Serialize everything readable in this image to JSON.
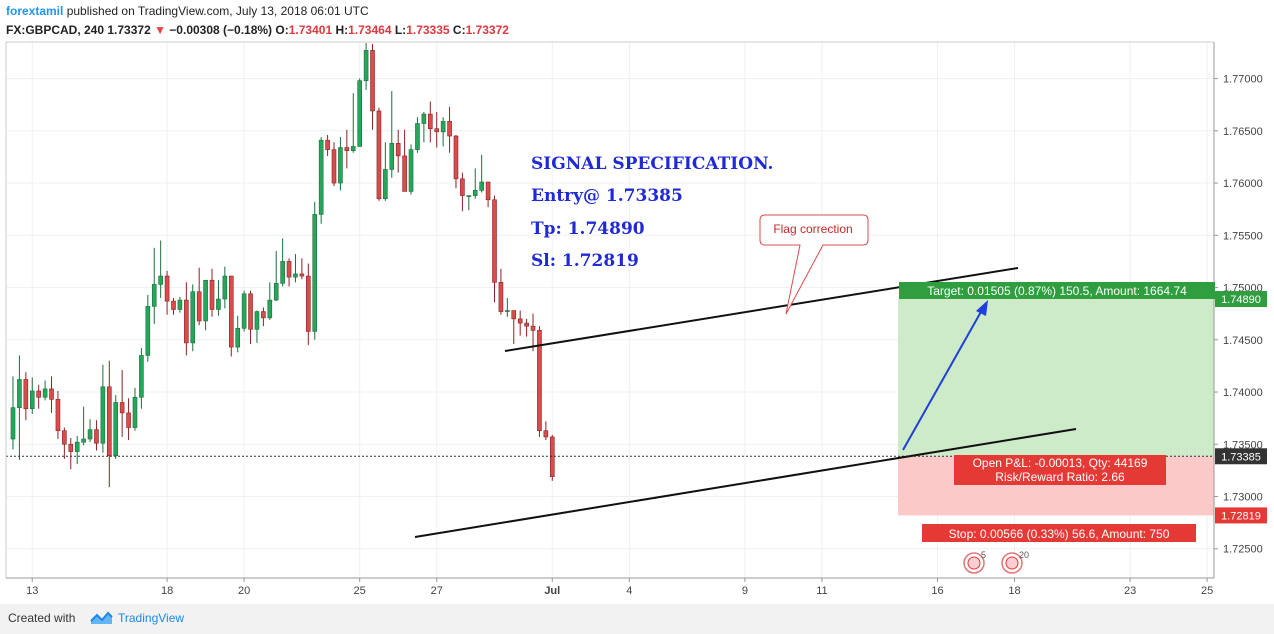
{
  "header": {
    "author": "forextamil",
    "published": " published on TradingView.com, July 13, 2018 06:01 UTC",
    "symbol": "FX:GBPCAD, 240",
    "last": " 1.73372 ",
    "change_arrow": "▼",
    "change": " −0.00308 (−0.18%) ",
    "o_label": "O:",
    "o_value": "1.73401",
    "h_label": " H:",
    "h_value": "1.73464",
    "l_label": " L:",
    "l_value": "1.73335",
    "c_label": " C:",
    "c_value": "1.73372"
  },
  "footer": {
    "created_with": "Created with",
    "brand": "TradingView"
  },
  "colors": {
    "up": "#26a65b",
    "down": "#d94c4c",
    "target_zone": "#cdebc9",
    "stop_zone": "#fcc9c9",
    "target_label": "#2e9e3e",
    "stop_label": "#e53935",
    "signal_text": "#1f2ad6",
    "arrow": "#1f3fd6"
  },
  "chart_data": {
    "type": "candlestick",
    "symbol": "FX:GBPCAD",
    "timeframe": "240",
    "ylim": [
      1.7222,
      1.7735
    ],
    "y_ticks": [
      "1.77000",
      "1.76500",
      "1.76000",
      "1.75500",
      "1.75000",
      "1.74500",
      "1.74000",
      "1.73500",
      "1.73000",
      "1.72500"
    ],
    "y_tick_values": [
      1.77,
      1.765,
      1.76,
      1.755,
      1.75,
      1.745,
      1.74,
      1.735,
      1.73,
      1.725
    ],
    "x_ticks": [
      {
        "label": "13",
        "bar": 3
      },
      {
        "label": "18",
        "bar": 24
      },
      {
        "label": "20",
        "bar": 36
      },
      {
        "label": "25",
        "bar": 54
      },
      {
        "label": "27",
        "bar": 66
      },
      {
        "label": "Jul",
        "bar": 84
      },
      {
        "label": "4",
        "bar": 96
      },
      {
        "label": "9",
        "bar": 114
      },
      {
        "label": "11",
        "bar": 126
      },
      {
        "label": "16",
        "bar": 144
      },
      {
        "label": "18",
        "bar": 156
      },
      {
        "label": "23",
        "bar": 174
      },
      {
        "label": "25",
        "bar": 186
      }
    ],
    "candles": [
      [
        1.7355,
        1.7385,
        1.7345,
        1.7415
      ],
      [
        1.7385,
        1.7412,
        1.7335,
        1.7435
      ],
      [
        1.7412,
        1.7384,
        1.7373,
        1.7419
      ],
      [
        1.7384,
        1.7401,
        1.7379,
        1.7414
      ],
      [
        1.7401,
        1.7395,
        1.7384,
        1.7407
      ],
      [
        1.7395,
        1.7403,
        1.7392,
        1.7411
      ],
      [
        1.7403,
        1.7393,
        1.738,
        1.7415
      ],
      [
        1.7393,
        1.7363,
        1.7355,
        1.7401
      ],
      [
        1.7363,
        1.735,
        1.7336,
        1.7366
      ],
      [
        1.735,
        1.7343,
        1.7326,
        1.7356
      ],
      [
        1.7343,
        1.7352,
        1.7331,
        1.7358
      ],
      [
        1.7352,
        1.7355,
        1.7349,
        1.7386
      ],
      [
        1.7355,
        1.7364,
        1.7352,
        1.7374
      ],
      [
        1.7364,
        1.7351,
        1.7344,
        1.7373
      ],
      [
        1.7351,
        1.7405,
        1.7342,
        1.7426
      ],
      [
        1.7405,
        1.7339,
        1.7309,
        1.743
      ],
      [
        1.7339,
        1.739,
        1.7336,
        1.7397
      ],
      [
        1.739,
        1.738,
        1.7357,
        1.7421
      ],
      [
        1.738,
        1.7366,
        1.7354,
        1.7394
      ],
      [
        1.7366,
        1.7395,
        1.7363,
        1.7404
      ],
      [
        1.7395,
        1.7435,
        1.7384,
        1.7442
      ],
      [
        1.7435,
        1.7482,
        1.7429,
        1.7493
      ],
      [
        1.7482,
        1.7503,
        1.7465,
        1.7538
      ],
      [
        1.7503,
        1.7511,
        1.749,
        1.7545
      ],
      [
        1.7511,
        1.7487,
        1.7474,
        1.7516
      ],
      [
        1.7487,
        1.7479,
        1.7474,
        1.749
      ],
      [
        1.7479,
        1.7488,
        1.7476,
        1.7491
      ],
      [
        1.7488,
        1.7447,
        1.7435,
        1.7505
      ],
      [
        1.7447,
        1.7496,
        1.7439,
        1.7503
      ],
      [
        1.7496,
        1.7468,
        1.7464,
        1.7519
      ],
      [
        1.7468,
        1.7507,
        1.7459,
        1.7507
      ],
      [
        1.7507,
        1.7479,
        1.7472,
        1.7518
      ],
      [
        1.7479,
        1.7489,
        1.7473,
        1.7507
      ],
      [
        1.7489,
        1.7511,
        1.748,
        1.752
      ],
      [
        1.7511,
        1.7443,
        1.7434,
        1.7511
      ],
      [
        1.7443,
        1.7461,
        1.7438,
        1.7473
      ],
      [
        1.7461,
        1.7494,
        1.7458,
        1.7497
      ],
      [
        1.7494,
        1.746,
        1.7446,
        1.7497
      ],
      [
        1.746,
        1.7477,
        1.7447,
        1.7478
      ],
      [
        1.7477,
        1.7471,
        1.7463,
        1.7481
      ],
      [
        1.7471,
        1.7488,
        1.7469,
        1.7505
      ],
      [
        1.7488,
        1.7504,
        1.7487,
        1.7535
      ],
      [
        1.7504,
        1.7525,
        1.7501,
        1.7547
      ],
      [
        1.7525,
        1.751,
        1.7501,
        1.7528
      ],
      [
        1.751,
        1.7513,
        1.7505,
        1.7532
      ],
      [
        1.7513,
        1.7511,
        1.7508,
        1.7528
      ],
      [
        1.7511,
        1.7458,
        1.7445,
        1.7523
      ],
      [
        1.7458,
        1.757,
        1.745,
        1.7582
      ],
      [
        1.757,
        1.7641,
        1.7561,
        1.7644
      ],
      [
        1.7641,
        1.7632,
        1.7626,
        1.7646
      ],
      [
        1.7632,
        1.76,
        1.7597,
        1.7639
      ],
      [
        1.76,
        1.7634,
        1.7593,
        1.7644
      ],
      [
        1.7634,
        1.7631,
        1.7614,
        1.7651
      ],
      [
        1.7631,
        1.7635,
        1.7629,
        1.7686
      ],
      [
        1.7635,
        1.7698,
        1.7635,
        1.77
      ],
      [
        1.7698,
        1.7727,
        1.7689,
        1.7734
      ],
      [
        1.7727,
        1.7669,
        1.7651,
        1.7733
      ],
      [
        1.7669,
        1.7585,
        1.7583,
        1.7672
      ],
      [
        1.7585,
        1.7613,
        1.7583,
        1.7639
      ],
      [
        1.7613,
        1.7638,
        1.7605,
        1.7688
      ],
      [
        1.7638,
        1.7626,
        1.761,
        1.7651
      ],
      [
        1.7626,
        1.7592,
        1.7592,
        1.7651
      ],
      [
        1.7592,
        1.7632,
        1.7589,
        1.7637
      ],
      [
        1.7632,
        1.7657,
        1.7629,
        1.7663
      ],
      [
        1.7657,
        1.7666,
        1.7639,
        1.7668
      ],
      [
        1.7666,
        1.7652,
        1.7639,
        1.7678
      ],
      [
        1.7652,
        1.7649,
        1.7634,
        1.7668
      ],
      [
        1.7649,
        1.7659,
        1.7635,
        1.7663
      ],
      [
        1.7659,
        1.7645,
        1.7629,
        1.7673
      ],
      [
        1.7645,
        1.7604,
        1.7595,
        1.7646
      ],
      [
        1.7604,
        1.7588,
        1.7573,
        1.761
      ],
      [
        1.7588,
        1.7588,
        1.7574,
        1.7588
      ],
      [
        1.7588,
        1.7593,
        1.7585,
        1.7614
      ],
      [
        1.7593,
        1.7601,
        1.7591,
        1.7627
      ],
      [
        1.7601,
        1.7584,
        1.7577,
        1.7601
      ],
      [
        1.7584,
        1.7505,
        1.7486,
        1.7588
      ],
      [
        1.7505,
        1.7477,
        1.7474,
        1.7518
      ],
      [
        1.7477,
        1.7478,
        1.7472,
        1.749
      ],
      [
        1.7478,
        1.747,
        1.7446,
        1.7478
      ],
      [
        1.747,
        1.7466,
        1.7454,
        1.7478
      ],
      [
        1.7466,
        1.7463,
        1.7453,
        1.747
      ],
      [
        1.7463,
        1.7459,
        1.7439,
        1.7475
      ],
      [
        1.7459,
        1.7363,
        1.7357,
        1.7463
      ],
      [
        1.7363,
        1.7357,
        1.7354,
        1.7372
      ],
      [
        1.7357,
        1.7319,
        1.7315,
        1.7359
      ]
    ],
    "target_label": "Target: 0.01505 (0.87%) 150.5, Amount: 1664.74",
    "stop_label": "Stop: 0.00566 (0.33%) 56.6, Amount: 750",
    "open_pnl_label": "Open P&L: -0.00013, Qty: 44169",
    "risk_reward_label": "Risk/Reward Ratio: 2.66",
    "entry": 1.73385,
    "target": 1.7489,
    "stop": 1.72819,
    "price_labels": {
      "target": "1.74890",
      "entry": "1.73385",
      "stop": "1.72819"
    },
    "signal_lines": [
      "SIGNAL SPECIFICATION.",
      "Entry@ 1.73385",
      "Tp: 1.74890",
      "Sl: 1.72819"
    ],
    "annotation": "Flag correction",
    "event_markers": [
      "5",
      "20"
    ]
  }
}
